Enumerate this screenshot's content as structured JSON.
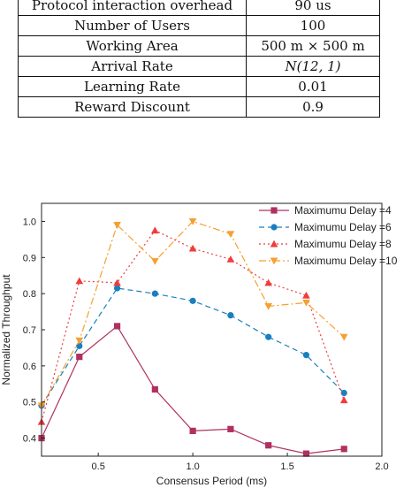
{
  "table": {
    "rows": [
      {
        "name": "Protocol interaction overhead",
        "value": "90 us",
        "math": false
      },
      {
        "name": "Number of Users",
        "value": "100",
        "math": false
      },
      {
        "name": "Working Area",
        "value": "500 m × 500 m",
        "math": false
      },
      {
        "name": "Arrival Rate",
        "value": "N(12, 1)",
        "math": true
      },
      {
        "name": "Learning Rate",
        "value": "0.01",
        "math": false
      },
      {
        "name": "Reward Discount",
        "value": "0.9",
        "math": false
      }
    ]
  },
  "chart_data": {
    "type": "line",
    "xlabel": "Consensus Period (ms)",
    "ylabel": "Normalized Throughput",
    "xlim": [
      0.2,
      2.0
    ],
    "ylim": [
      0.35,
      1.05
    ],
    "xticks": [
      "0.5",
      "1.0",
      "1.5",
      "2.0"
    ],
    "yticks": [
      "0.4",
      "0.5",
      "0.6",
      "0.7",
      "0.8",
      "0.9",
      "1.0"
    ],
    "legend_position": "top-right",
    "series": [
      {
        "name": "Maximumu Delay =4",
        "color": "#b03060",
        "marker": "square",
        "line_style": "solid",
        "points": [
          [
            0.2,
            0.4
          ],
          [
            0.4,
            0.625
          ],
          [
            0.6,
            0.71
          ],
          [
            0.8,
            0.535
          ],
          [
            1.0,
            0.42
          ],
          [
            1.2,
            0.425
          ],
          [
            1.4,
            0.38
          ],
          [
            1.6,
            0.357
          ],
          [
            1.8,
            0.37
          ]
        ]
      },
      {
        "name": "Maximumu Delay =6",
        "color": "#1a7fbf",
        "marker": "circle",
        "line_style": "dashed",
        "points": [
          [
            0.2,
            0.49
          ],
          [
            0.4,
            0.655
          ],
          [
            0.6,
            0.815
          ],
          [
            0.8,
            0.8
          ],
          [
            1.0,
            0.78
          ],
          [
            1.2,
            0.74
          ],
          [
            1.4,
            0.68
          ],
          [
            1.6,
            0.63
          ],
          [
            1.8,
            0.525
          ]
        ]
      },
      {
        "name": "Maximumu Delay =8",
        "color": "#f03c3c",
        "marker": "triangle-up",
        "line_style": "dotted",
        "points": [
          [
            0.2,
            0.445
          ],
          [
            0.4,
            0.835
          ],
          [
            0.6,
            0.83
          ],
          [
            0.8,
            0.975
          ],
          [
            1.0,
            0.925
          ],
          [
            1.2,
            0.895
          ],
          [
            1.4,
            0.83
          ],
          [
            1.6,
            0.795
          ],
          [
            1.8,
            0.505
          ]
        ]
      },
      {
        "name": "Maximumu Delay =10",
        "color": "#f5a030",
        "marker": "triangle-down",
        "line_style": "dashdot",
        "points": [
          [
            0.2,
            0.49
          ],
          [
            0.4,
            0.67
          ],
          [
            0.6,
            0.99
          ],
          [
            0.8,
            0.89
          ],
          [
            1.0,
            1.0
          ],
          [
            1.2,
            0.965
          ],
          [
            1.4,
            0.765
          ],
          [
            1.6,
            0.775
          ],
          [
            1.8,
            0.68
          ]
        ]
      }
    ]
  }
}
